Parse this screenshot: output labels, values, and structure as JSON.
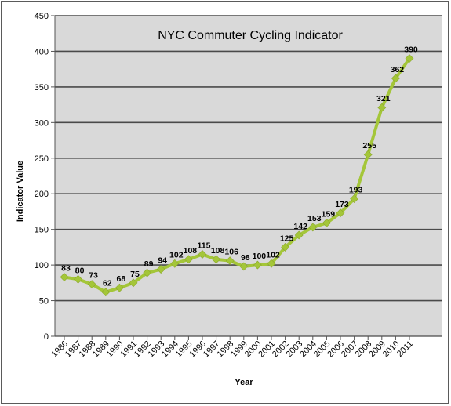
{
  "chart_data": {
    "type": "line",
    "title": "NYC Commuter Cycling Indicator",
    "xlabel": "Year",
    "ylabel": "Indicator Value",
    "ylim": [
      0,
      450
    ],
    "yticks": [
      0,
      50,
      100,
      150,
      200,
      250,
      300,
      350,
      400,
      450
    ],
    "grid": true,
    "legend": "none",
    "categories": [
      "1986",
      "1987",
      "1988",
      "1989",
      "1990",
      "1991",
      "1992",
      "1993",
      "1994",
      "1995",
      "1996",
      "1997",
      "1998",
      "1999",
      "2000",
      "2001",
      "2002",
      "2003",
      "2004",
      "2005",
      "2006",
      "2007",
      "2008",
      "2009",
      "2010",
      "2011"
    ],
    "series": [
      {
        "values": [
          83,
          80,
          73,
          62,
          68,
          75,
          89,
          94,
          102,
          108,
          115,
          108,
          106,
          98,
          100,
          102,
          125,
          142,
          153,
          159,
          173,
          193,
          255,
          321,
          362,
          390
        ],
        "labels": [
          "83",
          "80",
          "73",
          "62",
          "68",
          "75",
          "89",
          "94",
          "102",
          "108",
          "115",
          "108",
          "106",
          "98",
          "100",
          "102",
          "125",
          "142",
          "153",
          "159",
          "173",
          "193",
          "255",
          "321",
          "362",
          "390"
        ]
      }
    ],
    "colors": {
      "plot_bg": "#d9d9d9",
      "line": "#a4c639",
      "grid": "#4a4a4a"
    }
  }
}
